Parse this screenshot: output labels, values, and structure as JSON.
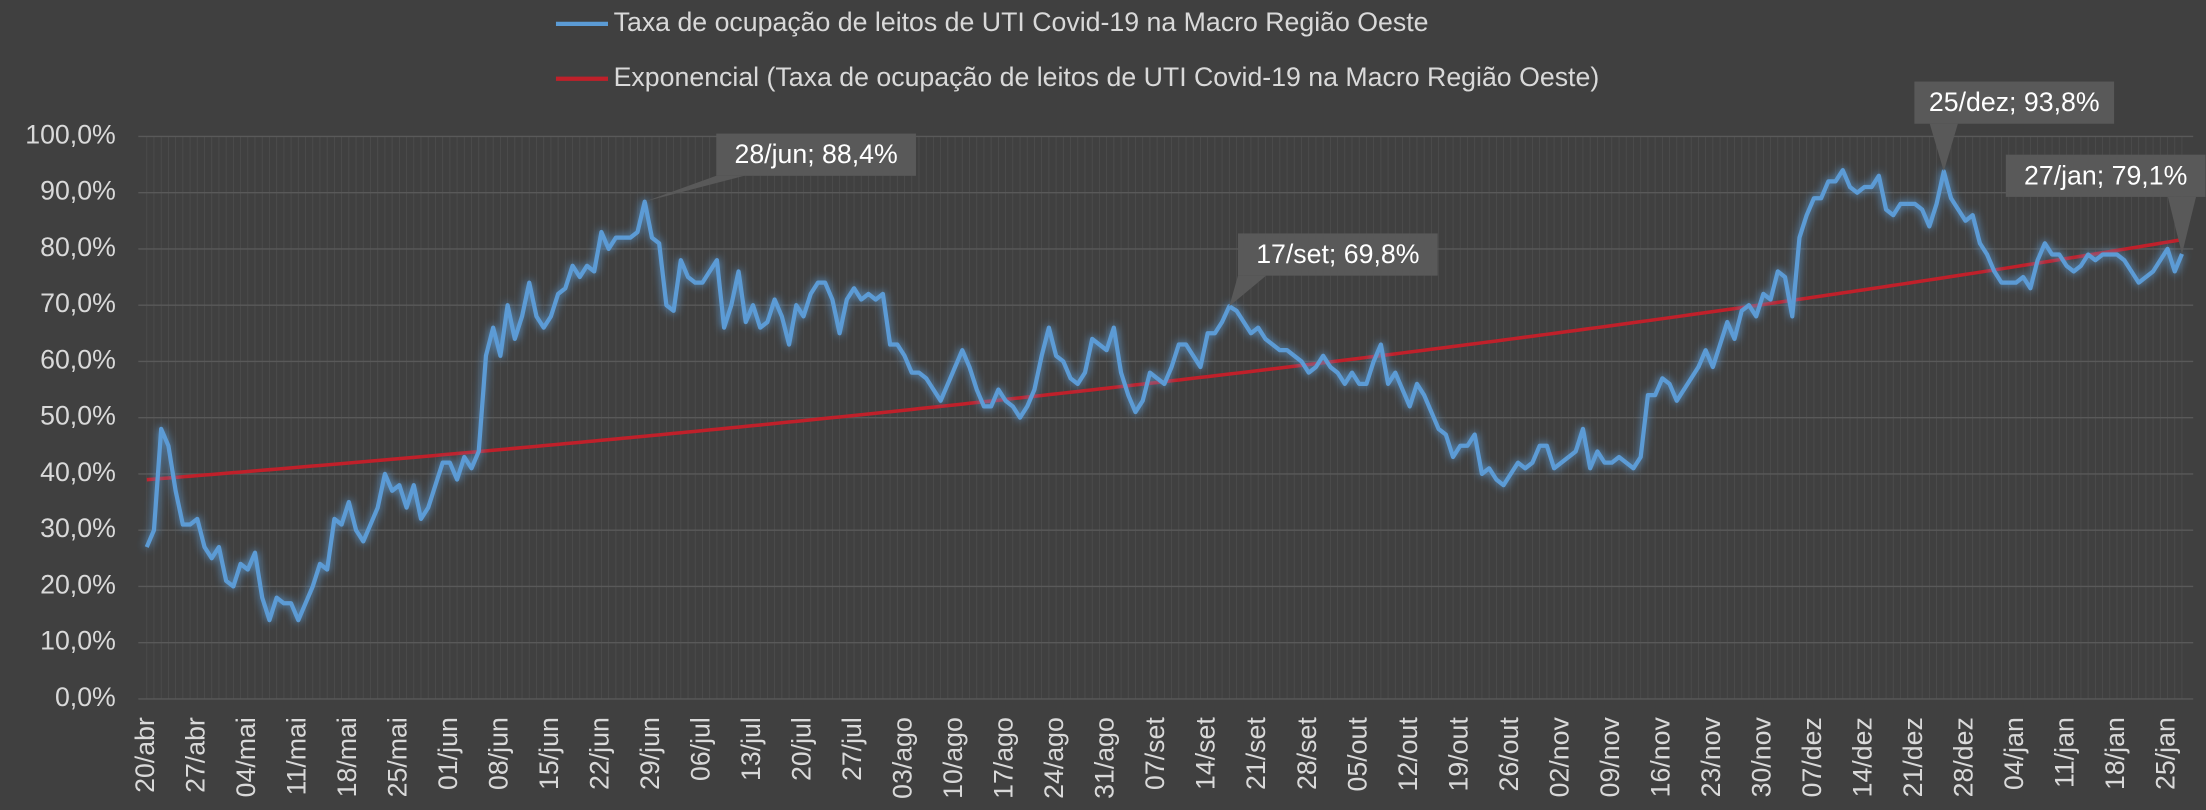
{
  "chart_data": {
    "type": "line",
    "categories": [
      "20/abr",
      null,
      null,
      null,
      null,
      null,
      null,
      "27/abr",
      null,
      null,
      null,
      null,
      null,
      null,
      "04/mai",
      null,
      null,
      null,
      null,
      null,
      null,
      "11/mai",
      null,
      null,
      null,
      null,
      null,
      null,
      "18/mai",
      null,
      null,
      null,
      null,
      null,
      null,
      "25/mai",
      null,
      null,
      null,
      null,
      null,
      null,
      "01/jun",
      null,
      null,
      null,
      null,
      null,
      null,
      "08/jun",
      null,
      null,
      null,
      null,
      null,
      null,
      "15/jun",
      null,
      null,
      null,
      null,
      null,
      null,
      "22/jun",
      null,
      null,
      null,
      null,
      null,
      null,
      "29/jun",
      null,
      null,
      null,
      null,
      null,
      null,
      "06/jul",
      null,
      null,
      null,
      null,
      null,
      null,
      "13/jul",
      null,
      null,
      null,
      null,
      null,
      null,
      "20/jul",
      null,
      null,
      null,
      null,
      null,
      null,
      "27/jul",
      null,
      null,
      null,
      null,
      null,
      null,
      "03/ago",
      null,
      null,
      null,
      null,
      null,
      null,
      "10/ago",
      null,
      null,
      null,
      null,
      null,
      null,
      "17/ago",
      null,
      null,
      null,
      null,
      null,
      null,
      "24/ago",
      null,
      null,
      null,
      null,
      null,
      null,
      "31/ago",
      null,
      null,
      null,
      null,
      null,
      null,
      "07/set",
      null,
      null,
      null,
      null,
      null,
      null,
      "14/set",
      null,
      null,
      null,
      null,
      null,
      null,
      "21/set",
      null,
      null,
      null,
      null,
      null,
      null,
      "28/set",
      null,
      null,
      null,
      null,
      null,
      null,
      "05/out",
      null,
      null,
      null,
      null,
      null,
      null,
      "12/out",
      null,
      null,
      null,
      null,
      null,
      null,
      "19/out",
      null,
      null,
      null,
      null,
      null,
      null,
      "26/out",
      null,
      null,
      null,
      null,
      null,
      null,
      "02/nov",
      null,
      null,
      null,
      null,
      null,
      null,
      "09/nov",
      null,
      null,
      null,
      null,
      null,
      null,
      "16/nov",
      null,
      null,
      null,
      null,
      null,
      null,
      "23/nov",
      null,
      null,
      null,
      null,
      null,
      null,
      "30/nov",
      null,
      null,
      null,
      null,
      null,
      null,
      "07/dez",
      null,
      null,
      null,
      null,
      null,
      null,
      "14/dez",
      null,
      null,
      null,
      null,
      null,
      null,
      "21/dez",
      null,
      null,
      null,
      null,
      null,
      null,
      "28/dez",
      null,
      null,
      null,
      null,
      null,
      null,
      "04/jan",
      null,
      null,
      null,
      null,
      null,
      null,
      "11/jan",
      null,
      null,
      null,
      null,
      null,
      null,
      "18/jan",
      null,
      null,
      null,
      null,
      null,
      null,
      "25/jan",
      null,
      null
    ],
    "series": [
      {
        "name": "Taxa de ocupação de leitos de UTI Covid-19 na Macro Região Oeste",
        "color": "#5b9bd5",
        "values": [
          27,
          30,
          48,
          45,
          37,
          31,
          31,
          32,
          27,
          25,
          27,
          21,
          20,
          24,
          23,
          26,
          18,
          14,
          18,
          17,
          17,
          14,
          17,
          20,
          24,
          23,
          32,
          31,
          35,
          30,
          28,
          31,
          34,
          40,
          37,
          38,
          34,
          38,
          32,
          34,
          38,
          42,
          42,
          39,
          43,
          41,
          44,
          61,
          66,
          61,
          70,
          64,
          68,
          74,
          68,
          66,
          68,
          72,
          73,
          77,
          75,
          77,
          76,
          83,
          80,
          82,
          82,
          82,
          83,
          88.4,
          82,
          81,
          70,
          69,
          78,
          75,
          74,
          74,
          76,
          78,
          66,
          70,
          76,
          67,
          70,
          66,
          67,
          71,
          68,
          63,
          70,
          68,
          72,
          74,
          74,
          71,
          65,
          71,
          73,
          71,
          72,
          71,
          72,
          63,
          63,
          61,
          58,
          58,
          57,
          55,
          53,
          56,
          59,
          62,
          59,
          55,
          52,
          52,
          55,
          53,
          52,
          50,
          52,
          55,
          61,
          66,
          61,
          60,
          57,
          56,
          58,
          64,
          63,
          62,
          66,
          58,
          54,
          51,
          53,
          58,
          57,
          56,
          59,
          63,
          63,
          61,
          59,
          65,
          65,
          67,
          69.8,
          69,
          67,
          65,
          66,
          64,
          63,
          62,
          62,
          61,
          60,
          58,
          59,
          61,
          59,
          58,
          56,
          58,
          56,
          56,
          60,
          63,
          56,
          58,
          55,
          52,
          56,
          54,
          51,
          48,
          47,
          43,
          45,
          45,
          47,
          40,
          41,
          39,
          38,
          40,
          42,
          41,
          42,
          45,
          45,
          41,
          42,
          43,
          44,
          48,
          41,
          44,
          42,
          42,
          43,
          42,
          41,
          43,
          54,
          54,
          57,
          56,
          53,
          55,
          57,
          59,
          62,
          59,
          63,
          67,
          64,
          69,
          70,
          68,
          72,
          71,
          76,
          75,
          68,
          82,
          86,
          89,
          89,
          92,
          92,
          94,
          91,
          90,
          91,
          91,
          93,
          87,
          86,
          88,
          88,
          88,
          87,
          84,
          88,
          93.8,
          89,
          87,
          85,
          86,
          81,
          79,
          76,
          74,
          74,
          74,
          75,
          73,
          78,
          81,
          79,
          79,
          77,
          76,
          77,
          79,
          78,
          79,
          79,
          79,
          78,
          76,
          74,
          75,
          76,
          78,
          80,
          76,
          79.1
        ]
      }
    ],
    "trendline": {
      "name": "Exponencial (Taxa de ocupação de leitos de UTI Covid-19 na Macro Região Oeste)",
      "color": "#c0202a",
      "type": "exponential"
    },
    "annotations": [
      {
        "text": "28/jun; 88,4%",
        "value": 88.4
      },
      {
        "text": "17/set; 69,8%",
        "value": 69.8
      },
      {
        "text": "25/dez; 93,8%",
        "value": 93.8
      },
      {
        "text": "27/jan; 79,1%",
        "value": 79.1
      }
    ],
    "ylim": [
      0,
      100
    ],
    "yticks": [
      {
        "value": 0,
        "label": "0,0%"
      },
      {
        "value": 10,
        "label": "10,0%"
      },
      {
        "value": 20,
        "label": "20,0%"
      },
      {
        "value": 30,
        "label": "30,0%"
      },
      {
        "value": 40,
        "label": "40,0%"
      },
      {
        "value": 50,
        "label": "50,0%"
      },
      {
        "value": 60,
        "label": "60,0%"
      },
      {
        "value": 70,
        "label": "70,0%"
      },
      {
        "value": 80,
        "label": "80,0%"
      },
      {
        "value": 90,
        "label": "90,0%"
      },
      {
        "value": 100,
        "label": "100,0%"
      }
    ],
    "grid": true,
    "legend": "top"
  }
}
